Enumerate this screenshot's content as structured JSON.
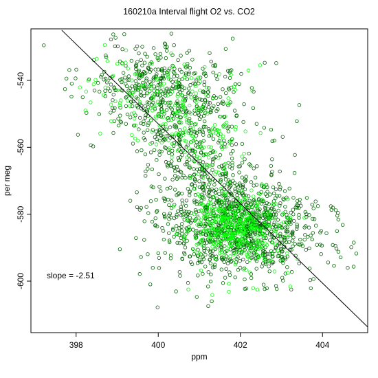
{
  "chart_data": {
    "type": "scatter",
    "title": "160210a   Interval flight O2 vs. CO2",
    "xlabel": "ppm",
    "ylabel": "per meg",
    "xlim": [
      396.9,
      405.1
    ],
    "ylim": [
      -615.4,
      -524.6
    ],
    "x_ticks": [
      398,
      400,
      402,
      404
    ],
    "y_ticks": [
      -540,
      -560,
      -580,
      -600
    ],
    "x_tick_labels": [
      "398",
      "400",
      "402",
      "404"
    ],
    "y_tick_labels": [
      "-540",
      "-560",
      "-580",
      "-600"
    ],
    "grid": false,
    "legend": "none",
    "annotation": "slope =  -2.51",
    "fit_line": {
      "slope": -2.51,
      "x": [
        397.65,
        405.1
      ],
      "y": [
        -525.0,
        -613.7
      ]
    },
    "series_colors": [
      "#006400",
      "#00ff00"
    ],
    "clusters": [
      {
        "color": "#006400",
        "count": 520,
        "cx": 400.2,
        "cy": -545,
        "sx": 0.95,
        "sy": 8,
        "rho": -0.25
      },
      {
        "color": "#00ff00",
        "count": 160,
        "cx": 400.1,
        "cy": -545,
        "sx": 0.95,
        "sy": 7,
        "rho": -0.25
      },
      {
        "color": "#006400",
        "count": 950,
        "cx": 402.0,
        "cy": -583,
        "sx": 0.95,
        "sy": 7,
        "rho": -0.2
      },
      {
        "color": "#00ff00",
        "count": 420,
        "cx": 401.9,
        "cy": -583,
        "sx": 0.55,
        "sy": 4.5,
        "rho": -0.1
      },
      {
        "color": "#006400",
        "count": 230,
        "cx": 401.0,
        "cy": -565,
        "sx": 0.7,
        "sy": 8,
        "rho": -0.3
      },
      {
        "color": "#00ff00",
        "count": 90,
        "cx": 401.1,
        "cy": -560,
        "sx": 0.5,
        "sy": 6,
        "rho": -0.2
      },
      {
        "color": "#006400",
        "count": 60,
        "cx": 401.2,
        "cy": -595,
        "sx": 1.0,
        "sy": 6,
        "rho": 0
      },
      {
        "color": "#00ff00",
        "count": 25,
        "cx": 402.0,
        "cy": -598,
        "sx": 0.5,
        "sy": 5,
        "rho": 0
      }
    ]
  }
}
